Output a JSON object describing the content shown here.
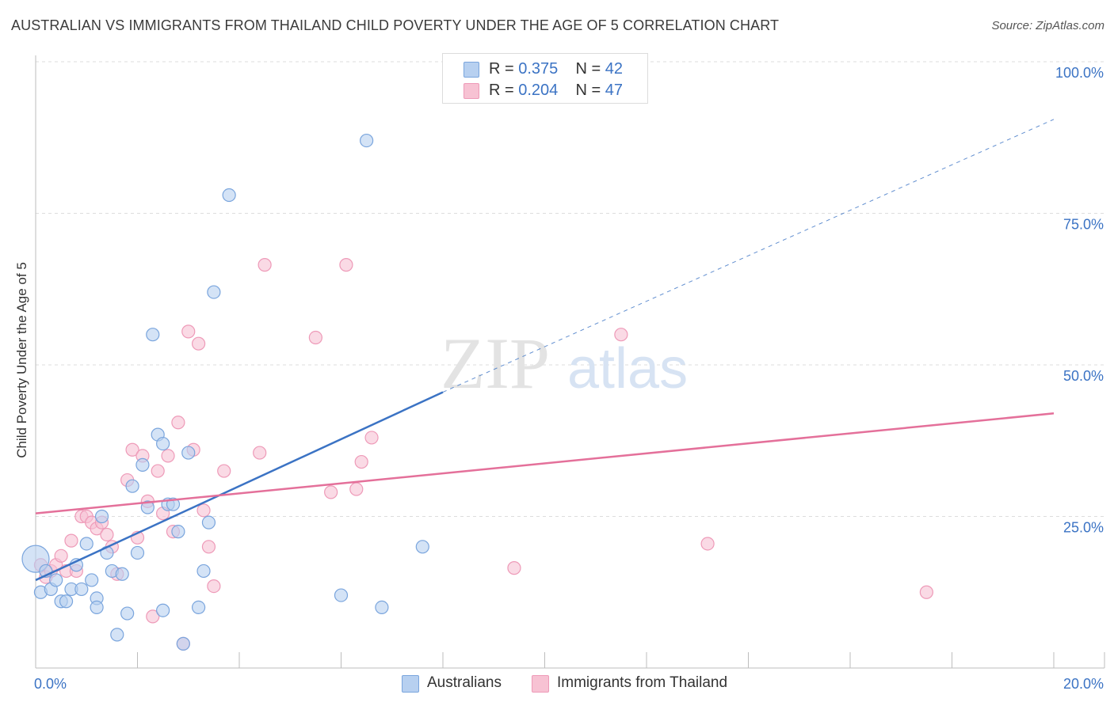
{
  "title": "AUSTRALIAN VS IMMIGRANTS FROM THAILAND CHILD POVERTY UNDER THE AGE OF 5 CORRELATION CHART",
  "source": "Source: ZipAtlas.com",
  "watermark": {
    "zip": "ZIP",
    "atlas": "atlas"
  },
  "colors": {
    "blue": "#3b73c4",
    "blue_fill": "#b7d0f0",
    "blue_stroke": "#7aa5dd",
    "pink": "#e4709a",
    "pink_fill": "#f7c2d3",
    "pink_stroke": "#ee9ab8"
  },
  "legend": {
    "rows": [
      {
        "r_label": "R =",
        "r_value": "0.375",
        "n_label": "N =",
        "n_value": "42"
      },
      {
        "r_label": "R =",
        "r_value": "0.204",
        "n_label": "N =",
        "n_value": "47"
      }
    ]
  },
  "bottom_legend": [
    "Australians",
    "Immigrants from Thailand"
  ],
  "chart_data": {
    "type": "scatter",
    "title": "AUSTRALIAN VS IMMIGRANTS FROM THAILAND CHILD POVERTY UNDER THE AGE OF 5 CORRELATION CHART",
    "xlabel": "",
    "ylabel": "Child Poverty Under the Age of 5",
    "xlim": [
      0,
      20
    ],
    "ylim": [
      0,
      100
    ],
    "x_tick_labels": [
      "0.0%",
      "20.0%"
    ],
    "y_tick_labels": [
      "100.0%",
      "75.0%",
      "50.0%",
      "25.0%"
    ],
    "y_ticks": [
      100,
      75,
      50,
      25
    ],
    "grid": true,
    "legend_position": "top-center",
    "series": [
      {
        "name": "Australians",
        "color": "blue",
        "R": 0.375,
        "N": 42,
        "trend": {
          "x0": 0,
          "y0": 14.5,
          "x1": 8.0,
          "y1": 45.5,
          "dashed_to_x": 20,
          "dashed_to_y": 90.5
        },
        "points": [
          [
            0.0,
            18.0
          ],
          [
            0.1,
            12.5
          ],
          [
            0.2,
            16.0
          ],
          [
            0.3,
            13.0
          ],
          [
            0.4,
            14.5
          ],
          [
            0.5,
            11.0
          ],
          [
            0.6,
            11.0
          ],
          [
            0.7,
            13.0
          ],
          [
            0.8,
            17.0
          ],
          [
            0.9,
            13.0
          ],
          [
            1.0,
            20.5
          ],
          [
            1.1,
            14.5
          ],
          [
            1.2,
            11.5
          ],
          [
            1.2,
            10.0
          ],
          [
            1.3,
            25.0
          ],
          [
            1.4,
            19.0
          ],
          [
            1.5,
            16.0
          ],
          [
            1.6,
            5.5
          ],
          [
            1.7,
            15.5
          ],
          [
            1.8,
            9.0
          ],
          [
            1.9,
            30.0
          ],
          [
            2.0,
            19.0
          ],
          [
            2.1,
            33.5
          ],
          [
            2.2,
            26.5
          ],
          [
            2.3,
            55.0
          ],
          [
            2.4,
            38.5
          ],
          [
            2.5,
            9.5
          ],
          [
            2.5,
            37.0
          ],
          [
            2.6,
            27.0
          ],
          [
            2.7,
            27.0
          ],
          [
            2.8,
            22.5
          ],
          [
            2.9,
            4.0
          ],
          [
            3.0,
            35.5
          ],
          [
            3.2,
            10.0
          ],
          [
            3.3,
            16.0
          ],
          [
            3.4,
            24.0
          ],
          [
            3.5,
            62.0
          ],
          [
            3.8,
            78.0
          ],
          [
            6.0,
            12.0
          ],
          [
            6.5,
            87.0
          ],
          [
            6.8,
            10.0
          ],
          [
            7.6,
            20.0
          ]
        ]
      },
      {
        "name": "Immigrants from Thailand",
        "color": "pink",
        "R": 0.204,
        "N": 47,
        "trend": {
          "x0": 0,
          "y0": 25.5,
          "x1": 20,
          "y1": 42.0
        },
        "points": [
          [
            0.1,
            17.0
          ],
          [
            0.2,
            15.0
          ],
          [
            0.3,
            16.0
          ],
          [
            0.4,
            17.0
          ],
          [
            0.5,
            18.5
          ],
          [
            0.6,
            16.0
          ],
          [
            0.7,
            21.0
          ],
          [
            0.8,
            16.0
          ],
          [
            0.9,
            25.0
          ],
          [
            1.0,
            25.0
          ],
          [
            1.1,
            24.0
          ],
          [
            1.2,
            23.0
          ],
          [
            1.3,
            24.0
          ],
          [
            1.4,
            22.0
          ],
          [
            1.5,
            20.0
          ],
          [
            1.6,
            15.5
          ],
          [
            1.8,
            31.0
          ],
          [
            1.9,
            36.0
          ],
          [
            2.0,
            21.5
          ],
          [
            2.1,
            35.0
          ],
          [
            2.2,
            27.5
          ],
          [
            2.3,
            8.5
          ],
          [
            2.4,
            32.5
          ],
          [
            2.5,
            25.5
          ],
          [
            2.6,
            35.0
          ],
          [
            2.7,
            22.5
          ],
          [
            2.8,
            40.5
          ],
          [
            2.9,
            4.0
          ],
          [
            3.0,
            55.5
          ],
          [
            3.1,
            36.0
          ],
          [
            3.2,
            53.5
          ],
          [
            3.3,
            26.0
          ],
          [
            3.4,
            20.0
          ],
          [
            3.5,
            13.5
          ],
          [
            3.7,
            32.5
          ],
          [
            4.4,
            35.5
          ],
          [
            4.5,
            66.5
          ],
          [
            5.5,
            54.5
          ],
          [
            5.8,
            29.0
          ],
          [
            6.1,
            66.5
          ],
          [
            6.3,
            29.5
          ],
          [
            6.4,
            34.0
          ],
          [
            6.6,
            38.0
          ],
          [
            9.4,
            16.5
          ],
          [
            11.5,
            55.0
          ],
          [
            13.2,
            20.5
          ],
          [
            17.5,
            12.5
          ]
        ]
      }
    ]
  }
}
